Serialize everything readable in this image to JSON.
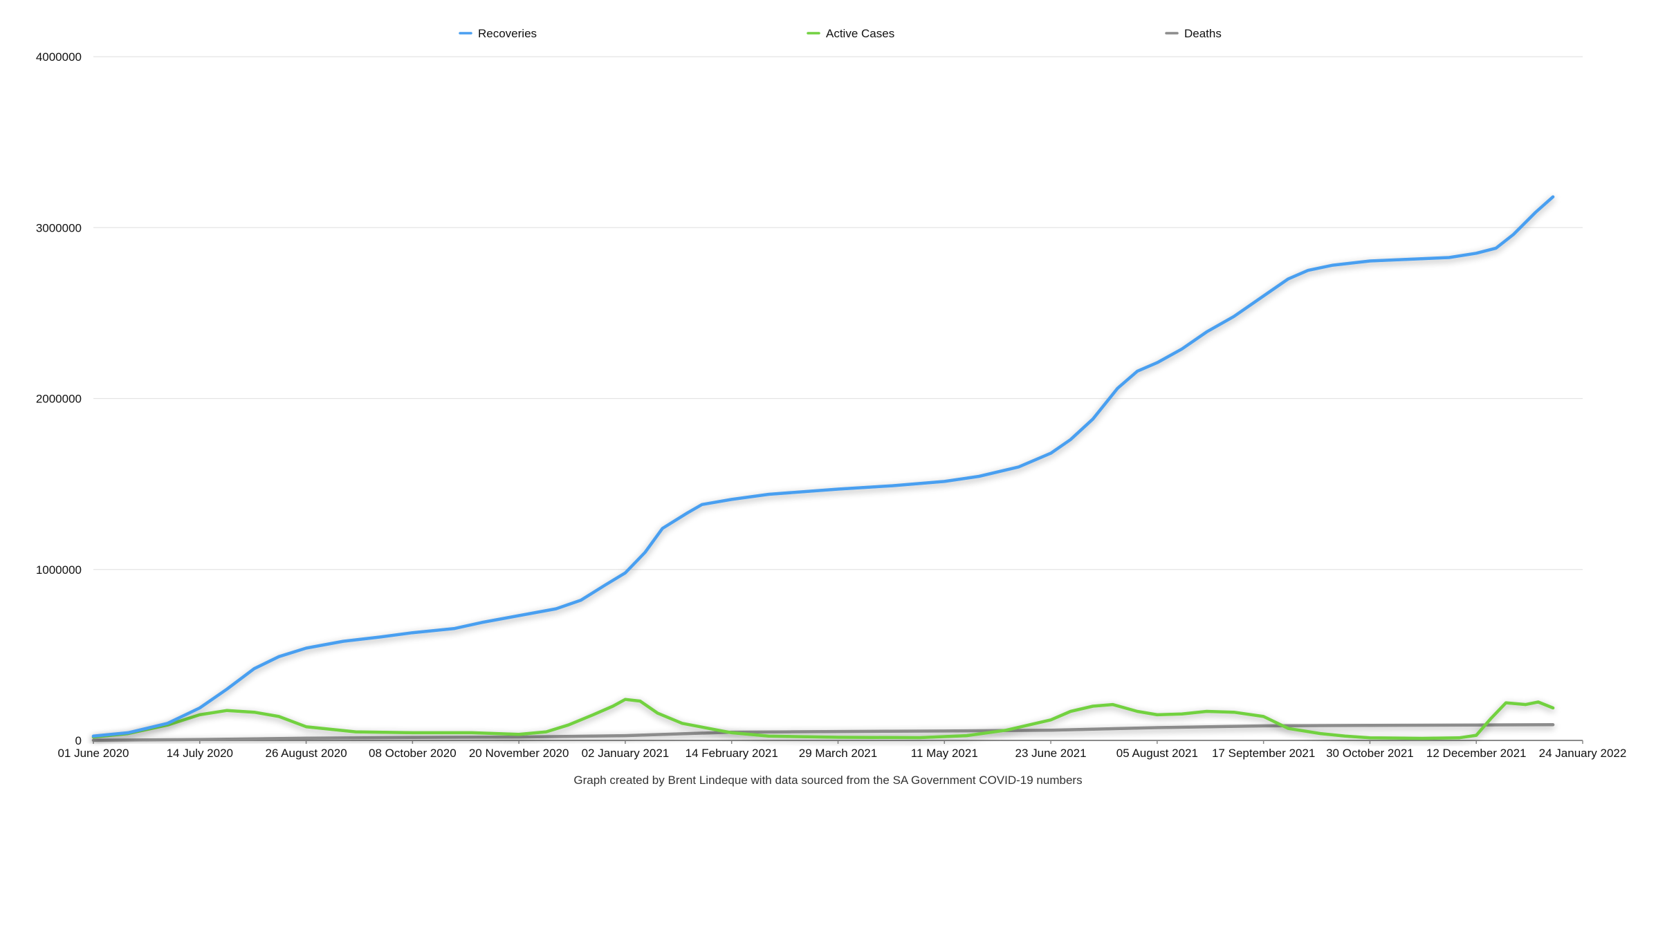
{
  "chart_data": {
    "type": "line",
    "title": "",
    "xlabel": "",
    "ylabel": "",
    "caption": "Graph created by Brent Lindeque with data sourced from the SA Government COVID-19 numbers",
    "x_axis": {
      "type": "date",
      "min": "2020-06-01",
      "max": "2022-01-24",
      "tick_labels": [
        "01 June 2020",
        "14 July 2020",
        "26 August 2020",
        "08 October 2020",
        "20 November 2020",
        "02 January 2021",
        "14 February 2021",
        "29 March 2021",
        "11 May 2021",
        "23 June 2021",
        "05 August 2021",
        "17 September 2021",
        "30 October 2021",
        "12 December 2021",
        "24 January 2022"
      ],
      "tick_values": [
        "2020-06-01",
        "2020-07-14",
        "2020-08-26",
        "2020-10-08",
        "2020-11-20",
        "2021-01-02",
        "2021-02-14",
        "2021-03-29",
        "2021-05-11",
        "2021-06-23",
        "2021-08-05",
        "2021-09-17",
        "2021-10-30",
        "2021-12-12",
        "2022-01-24"
      ]
    },
    "y_axis": {
      "min": 0,
      "max": 4000000,
      "tick_labels": [
        "0",
        "1000000",
        "2000000",
        "3000000",
        "4000000"
      ],
      "tick_values": [
        0,
        1000000,
        2000000,
        3000000,
        4000000
      ]
    },
    "grid": true,
    "legend_position": "top",
    "series": [
      {
        "name": "Recoveries",
        "color": "#4a9ff0",
        "points": [
          [
            "2020-06-01",
            25000
          ],
          [
            "2020-06-15",
            45000
          ],
          [
            "2020-07-01",
            100000
          ],
          [
            "2020-07-14",
            190000
          ],
          [
            "2020-07-25",
            300000
          ],
          [
            "2020-08-05",
            420000
          ],
          [
            "2020-08-15",
            490000
          ],
          [
            "2020-08-26",
            540000
          ],
          [
            "2020-09-10",
            580000
          ],
          [
            "2020-09-25",
            605000
          ],
          [
            "2020-10-08",
            630000
          ],
          [
            "2020-10-25",
            655000
          ],
          [
            "2020-11-05",
            690000
          ],
          [
            "2020-11-20",
            730000
          ],
          [
            "2020-12-05",
            770000
          ],
          [
            "2020-12-15",
            820000
          ],
          [
            "2020-12-25",
            910000
          ],
          [
            "2021-01-02",
            980000
          ],
          [
            "2021-01-10",
            1100000
          ],
          [
            "2021-01-17",
            1240000
          ],
          [
            "2021-01-27",
            1330000
          ],
          [
            "2021-02-02",
            1380000
          ],
          [
            "2021-02-14",
            1410000
          ],
          [
            "2021-03-01",
            1440000
          ],
          [
            "2021-03-29",
            1470000
          ],
          [
            "2021-04-20",
            1490000
          ],
          [
            "2021-05-11",
            1515000
          ],
          [
            "2021-05-25",
            1545000
          ],
          [
            "2021-06-10",
            1600000
          ],
          [
            "2021-06-23",
            1680000
          ],
          [
            "2021-07-01",
            1760000
          ],
          [
            "2021-07-10",
            1880000
          ],
          [
            "2021-07-20",
            2060000
          ],
          [
            "2021-07-28",
            2160000
          ],
          [
            "2021-08-05",
            2210000
          ],
          [
            "2021-08-15",
            2290000
          ],
          [
            "2021-08-25",
            2390000
          ],
          [
            "2021-09-05",
            2480000
          ],
          [
            "2021-09-17",
            2600000
          ],
          [
            "2021-09-27",
            2700000
          ],
          [
            "2021-10-05",
            2750000
          ],
          [
            "2021-10-15",
            2780000
          ],
          [
            "2021-10-30",
            2805000
          ],
          [
            "2021-11-15",
            2815000
          ],
          [
            "2021-12-01",
            2825000
          ],
          [
            "2021-12-12",
            2850000
          ],
          [
            "2021-12-20",
            2880000
          ],
          [
            "2021-12-27",
            2960000
          ],
          [
            "2022-01-05",
            3090000
          ],
          [
            "2022-01-12",
            3180000
          ]
        ]
      },
      {
        "name": "Active Cases",
        "color": "#72d141",
        "points": [
          [
            "2020-06-01",
            20000
          ],
          [
            "2020-06-15",
            40000
          ],
          [
            "2020-07-01",
            90000
          ],
          [
            "2020-07-14",
            150000
          ],
          [
            "2020-07-25",
            175000
          ],
          [
            "2020-08-05",
            165000
          ],
          [
            "2020-08-15",
            140000
          ],
          [
            "2020-08-26",
            80000
          ],
          [
            "2020-09-15",
            50000
          ],
          [
            "2020-10-08",
            45000
          ],
          [
            "2020-11-01",
            45000
          ],
          [
            "2020-11-20",
            35000
          ],
          [
            "2020-12-01",
            50000
          ],
          [
            "2020-12-10",
            90000
          ],
          [
            "2020-12-20",
            150000
          ],
          [
            "2020-12-28",
            200000
          ],
          [
            "2021-01-02",
            240000
          ],
          [
            "2021-01-08",
            230000
          ],
          [
            "2021-01-15",
            160000
          ],
          [
            "2021-01-25",
            100000
          ],
          [
            "2021-02-14",
            45000
          ],
          [
            "2021-03-01",
            25000
          ],
          [
            "2021-03-29",
            18000
          ],
          [
            "2021-05-01",
            16000
          ],
          [
            "2021-05-20",
            28000
          ],
          [
            "2021-06-05",
            60000
          ],
          [
            "2021-06-23",
            120000
          ],
          [
            "2021-07-01",
            170000
          ],
          [
            "2021-07-10",
            200000
          ],
          [
            "2021-07-18",
            210000
          ],
          [
            "2021-07-28",
            170000
          ],
          [
            "2021-08-05",
            150000
          ],
          [
            "2021-08-15",
            155000
          ],
          [
            "2021-08-25",
            170000
          ],
          [
            "2021-09-05",
            165000
          ],
          [
            "2021-09-17",
            140000
          ],
          [
            "2021-09-27",
            70000
          ],
          [
            "2021-10-10",
            40000
          ],
          [
            "2021-10-20",
            25000
          ],
          [
            "2021-10-30",
            15000
          ],
          [
            "2021-11-20",
            12000
          ],
          [
            "2021-12-05",
            15000
          ],
          [
            "2021-12-12",
            30000
          ],
          [
            "2021-12-18",
            130000
          ],
          [
            "2021-12-24",
            220000
          ],
          [
            "2022-01-01",
            210000
          ],
          [
            "2022-01-06",
            225000
          ],
          [
            "2022-01-12",
            190000
          ]
        ]
      },
      {
        "name": "Deaths",
        "color": "#8c8c8c",
        "points": [
          [
            "2020-06-01",
            1000
          ],
          [
            "2020-07-14",
            5000
          ],
          [
            "2020-08-26",
            13000
          ],
          [
            "2020-10-08",
            17500
          ],
          [
            "2020-11-20",
            20000
          ],
          [
            "2021-01-02",
            28000
          ],
          [
            "2021-02-14",
            48000
          ],
          [
            "2021-03-29",
            52000
          ],
          [
            "2021-05-11",
            55000
          ],
          [
            "2021-06-23",
            60000
          ],
          [
            "2021-08-05",
            75000
          ],
          [
            "2021-09-17",
            85000
          ],
          [
            "2021-10-30",
            88000
          ],
          [
            "2021-12-12",
            90000
          ],
          [
            "2022-01-12",
            92000
          ]
        ]
      }
    ]
  }
}
